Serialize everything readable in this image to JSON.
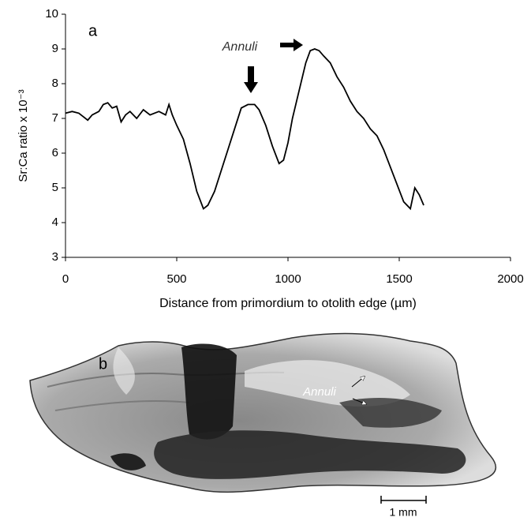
{
  "chart_data": {
    "type": "line",
    "panel_label": "a",
    "x_label": "Distance from primordium to otolith edge (µm)",
    "y_label": "Sr:Ca ratio x 10⁻³",
    "annotation": "Annuli",
    "x": [
      0,
      30,
      60,
      80,
      100,
      120,
      150,
      170,
      190,
      210,
      230,
      250,
      270,
      290,
      320,
      350,
      380,
      420,
      450,
      465,
      480,
      500,
      530,
      560,
      590,
      620,
      640,
      670,
      700,
      730,
      760,
      790,
      820,
      850,
      870,
      900,
      930,
      960,
      980,
      1000,
      1020,
      1050,
      1080,
      1100,
      1120,
      1140,
      1160,
      1190,
      1220,
      1250,
      1280,
      1310,
      1340,
      1370,
      1400,
      1430,
      1460,
      1490,
      1520,
      1550,
      1570,
      1590,
      1610
    ],
    "series": [
      {
        "name": "Sr:Ca",
        "color": "#000000",
        "values": [
          7.15,
          7.2,
          7.15,
          7.05,
          6.95,
          7.1,
          7.2,
          7.4,
          7.45,
          7.3,
          7.35,
          6.9,
          7.1,
          7.2,
          7.0,
          7.25,
          7.1,
          7.2,
          7.1,
          7.4,
          7.1,
          6.8,
          6.4,
          5.7,
          4.9,
          4.4,
          4.5,
          4.9,
          5.5,
          6.1,
          6.7,
          7.3,
          7.4,
          7.4,
          7.25,
          6.8,
          6.2,
          5.7,
          5.8,
          6.3,
          7.0,
          7.8,
          8.6,
          8.95,
          9.0,
          8.95,
          8.8,
          8.6,
          8.2,
          7.9,
          7.5,
          7.2,
          7.0,
          6.7,
          6.5,
          6.1,
          5.6,
          5.1,
          4.6,
          4.4,
          5.0,
          4.8,
          4.5
        ]
      }
    ],
    "xlim": [
      0,
      2000
    ],
    "xticks": [
      0,
      500,
      1000,
      1500,
      2000
    ],
    "ylim": [
      3,
      10
    ],
    "yticks": [
      3,
      4,
      5,
      6,
      7,
      8,
      9,
      10
    ],
    "grid": false
  },
  "panel_b": {
    "panel_label": "b",
    "annotation": "Annuli",
    "scale_bar": "1 mm"
  }
}
